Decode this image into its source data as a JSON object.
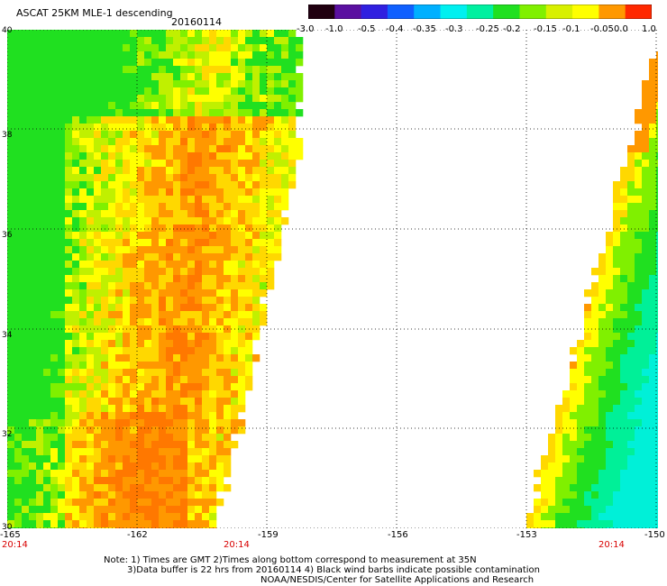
{
  "header": {
    "title": "ASCAT 25KM MLE-1 descending",
    "date": "20160114"
  },
  "colorbar": {
    "labels": [
      "-3.0",
      "-1.0",
      "-0.5",
      "-0.4",
      "-0.35",
      "-0.3",
      "-0.25",
      "-0.2",
      "-0.15",
      "-0.1",
      "-0.05",
      "0.0",
      "1.0"
    ],
    "colors": [
      "#200010",
      "#5a10a0",
      "#3020e0",
      "#1060ff",
      "#00b0ff",
      "#00f0f0",
      "#00f0a0",
      "#20e020",
      "#80f000",
      "#d8f000",
      "#ffff00",
      "#ff9800",
      "#ff2800"
    ]
  },
  "map": {
    "lat_labels": [
      "40",
      "38",
      "36",
      "34",
      "32",
      "30"
    ],
    "lon_labels": [
      "-165",
      "-162",
      "-159",
      "-156",
      "-153",
      "-150"
    ],
    "time_labels": [
      "20:14",
      "20:14",
      "20:14"
    ],
    "lon_range": [
      -165,
      -150
    ],
    "lat_range": [
      30,
      40
    ]
  },
  "footer": {
    "note_line1": "Note: 1) Times are GMT 2)Times along bottom correspond to measurement at 35N",
    "note_line2": "3)Data buffer is 22 hrs from 20160114 4) Black wind barbs indicate possible contamination",
    "note_line3": "NOAA/NESDIS/Center for Satellite Applications and Research"
  }
}
